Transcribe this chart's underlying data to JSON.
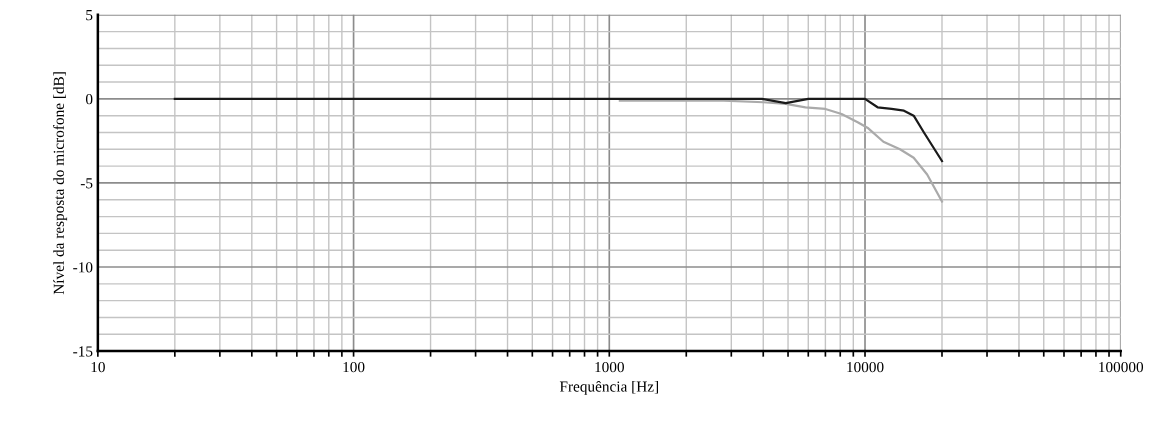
{
  "chart_data": {
    "type": "line",
    "xlabel": "Frequência [Hz]",
    "ylabel": "Nível da resposta do microfone [dB]",
    "log": "x",
    "grid": true,
    "marker": "none",
    "line_style": "solid",
    "xlim": [
      10,
      100000
    ],
    "ylim": [
      -15,
      5
    ],
    "xticks": [
      10,
      {
        "value": 20,
        "label": null
      },
      {
        "value": 30,
        "label": null
      },
      {
        "value": 40,
        "label": null
      },
      {
        "value": 50,
        "label": null
      },
      {
        "value": 60,
        "label": null
      },
      {
        "value": 70,
        "label": null
      },
      {
        "value": 80,
        "label": null
      },
      {
        "value": 90,
        "label": null
      },
      100,
      {
        "value": 200,
        "label": null
      },
      {
        "value": 300,
        "label": null
      },
      {
        "value": 400,
        "label": null
      },
      {
        "value": 500,
        "label": null
      },
      {
        "value": 600,
        "label": null
      },
      {
        "value": 700,
        "label": null
      },
      {
        "value": 800,
        "label": null
      },
      {
        "value": 900,
        "label": null
      },
      1000,
      {
        "value": 2000,
        "label": null
      },
      {
        "value": 3000,
        "label": null
      },
      {
        "value": 4000,
        "label": null
      },
      {
        "value": 5000,
        "label": null
      },
      {
        "value": 6000,
        "label": null
      },
      {
        "value": 7000,
        "label": null
      },
      {
        "value": 8000,
        "label": null
      },
      {
        "value": 9000,
        "label": null
      },
      10000,
      {
        "value": 20000,
        "label": null
      },
      {
        "value": 30000,
        "label": null
      },
      {
        "value": 40000,
        "label": null
      },
      {
        "value": 50000,
        "label": null
      },
      {
        "value": 60000,
        "label": null
      },
      {
        "value": 70000,
        "label": null
      },
      {
        "value": 80000,
        "label": null
      },
      {
        "value": 90000,
        "label": null
      },
      100000
    ],
    "yticks": [
      -15,
      {
        "value": -14,
        "label": null
      },
      {
        "value": -13,
        "label": null
      },
      {
        "value": -12,
        "label": null
      },
      {
        "value": -11,
        "label": null
      },
      -10,
      {
        "value": -9,
        "label": null
      },
      {
        "value": -8,
        "label": null
      },
      {
        "value": -7,
        "label": null
      },
      {
        "value": -6,
        "label": null
      },
      -5,
      {
        "value": -4,
        "label": null
      },
      {
        "value": -3,
        "label": null
      },
      {
        "value": -2,
        "label": null
      },
      {
        "value": -1,
        "label": null
      },
      0,
      {
        "value": 1,
        "label": null
      },
      {
        "value": 2,
        "label": null
      },
      {
        "value": 3,
        "label": null
      },
      {
        "value": 4,
        "label": null
      },
      5
    ],
    "series": [
      {
        "color": "#aaaaaa",
        "x": [
          1100,
          2800,
          4000,
          4900,
          5850,
          7000,
          8100,
          9400,
          10300,
          11800,
          13700,
          15500,
          17500,
          20000
        ],
        "values": [
          -0.1,
          -0.1,
          -0.2,
          -0.3,
          -0.5,
          -0.6,
          -0.9,
          -1.4,
          -1.75,
          -2.55,
          -3.0,
          -3.5,
          -4.5,
          -6.1
        ]
      },
      {
        "color": "#1a1a1a",
        "x": [
          20,
          1000,
          3950,
          4900,
          6000,
          9000,
          10000,
          11200,
          12700,
          14200,
          15500,
          17000,
          20000
        ],
        "values": [
          0,
          0,
          0,
          -0.25,
          0,
          0,
          0,
          -0.5,
          -0.6,
          -0.7,
          -1.0,
          -2.0,
          -3.7
        ]
      }
    ]
  }
}
